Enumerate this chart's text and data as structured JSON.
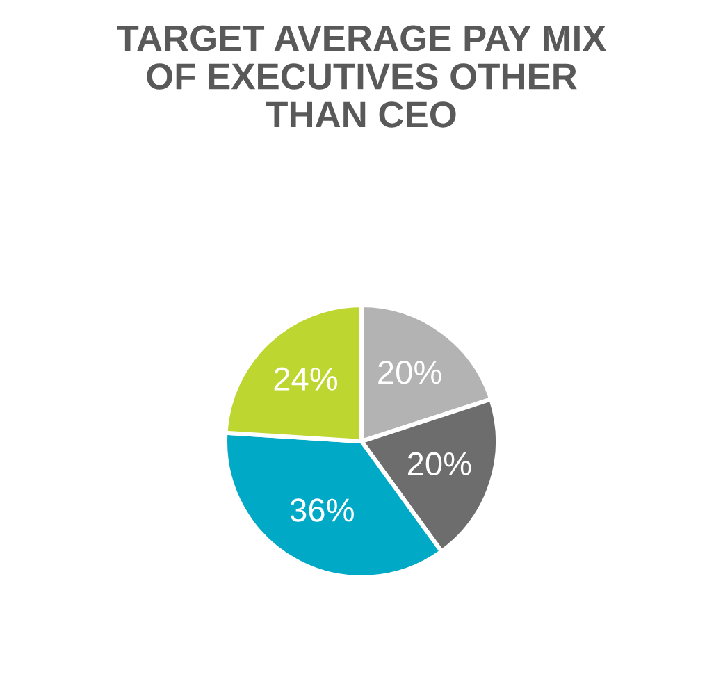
{
  "chart_data": {
    "type": "pie",
    "title": "TARGET AVERAGE PAY MIX\nOF EXECUTIVES OTHER\nTHAN CEO",
    "categories": [
      null,
      null,
      null,
      null
    ],
    "values": [
      20,
      20,
      36,
      24
    ],
    "value_labels": [
      "20%",
      "20%",
      "36%",
      "24%"
    ],
    "colors": [
      "#b3b3b3",
      "#6d6d6d",
      "#00a9c6",
      "#bed630"
    ]
  }
}
